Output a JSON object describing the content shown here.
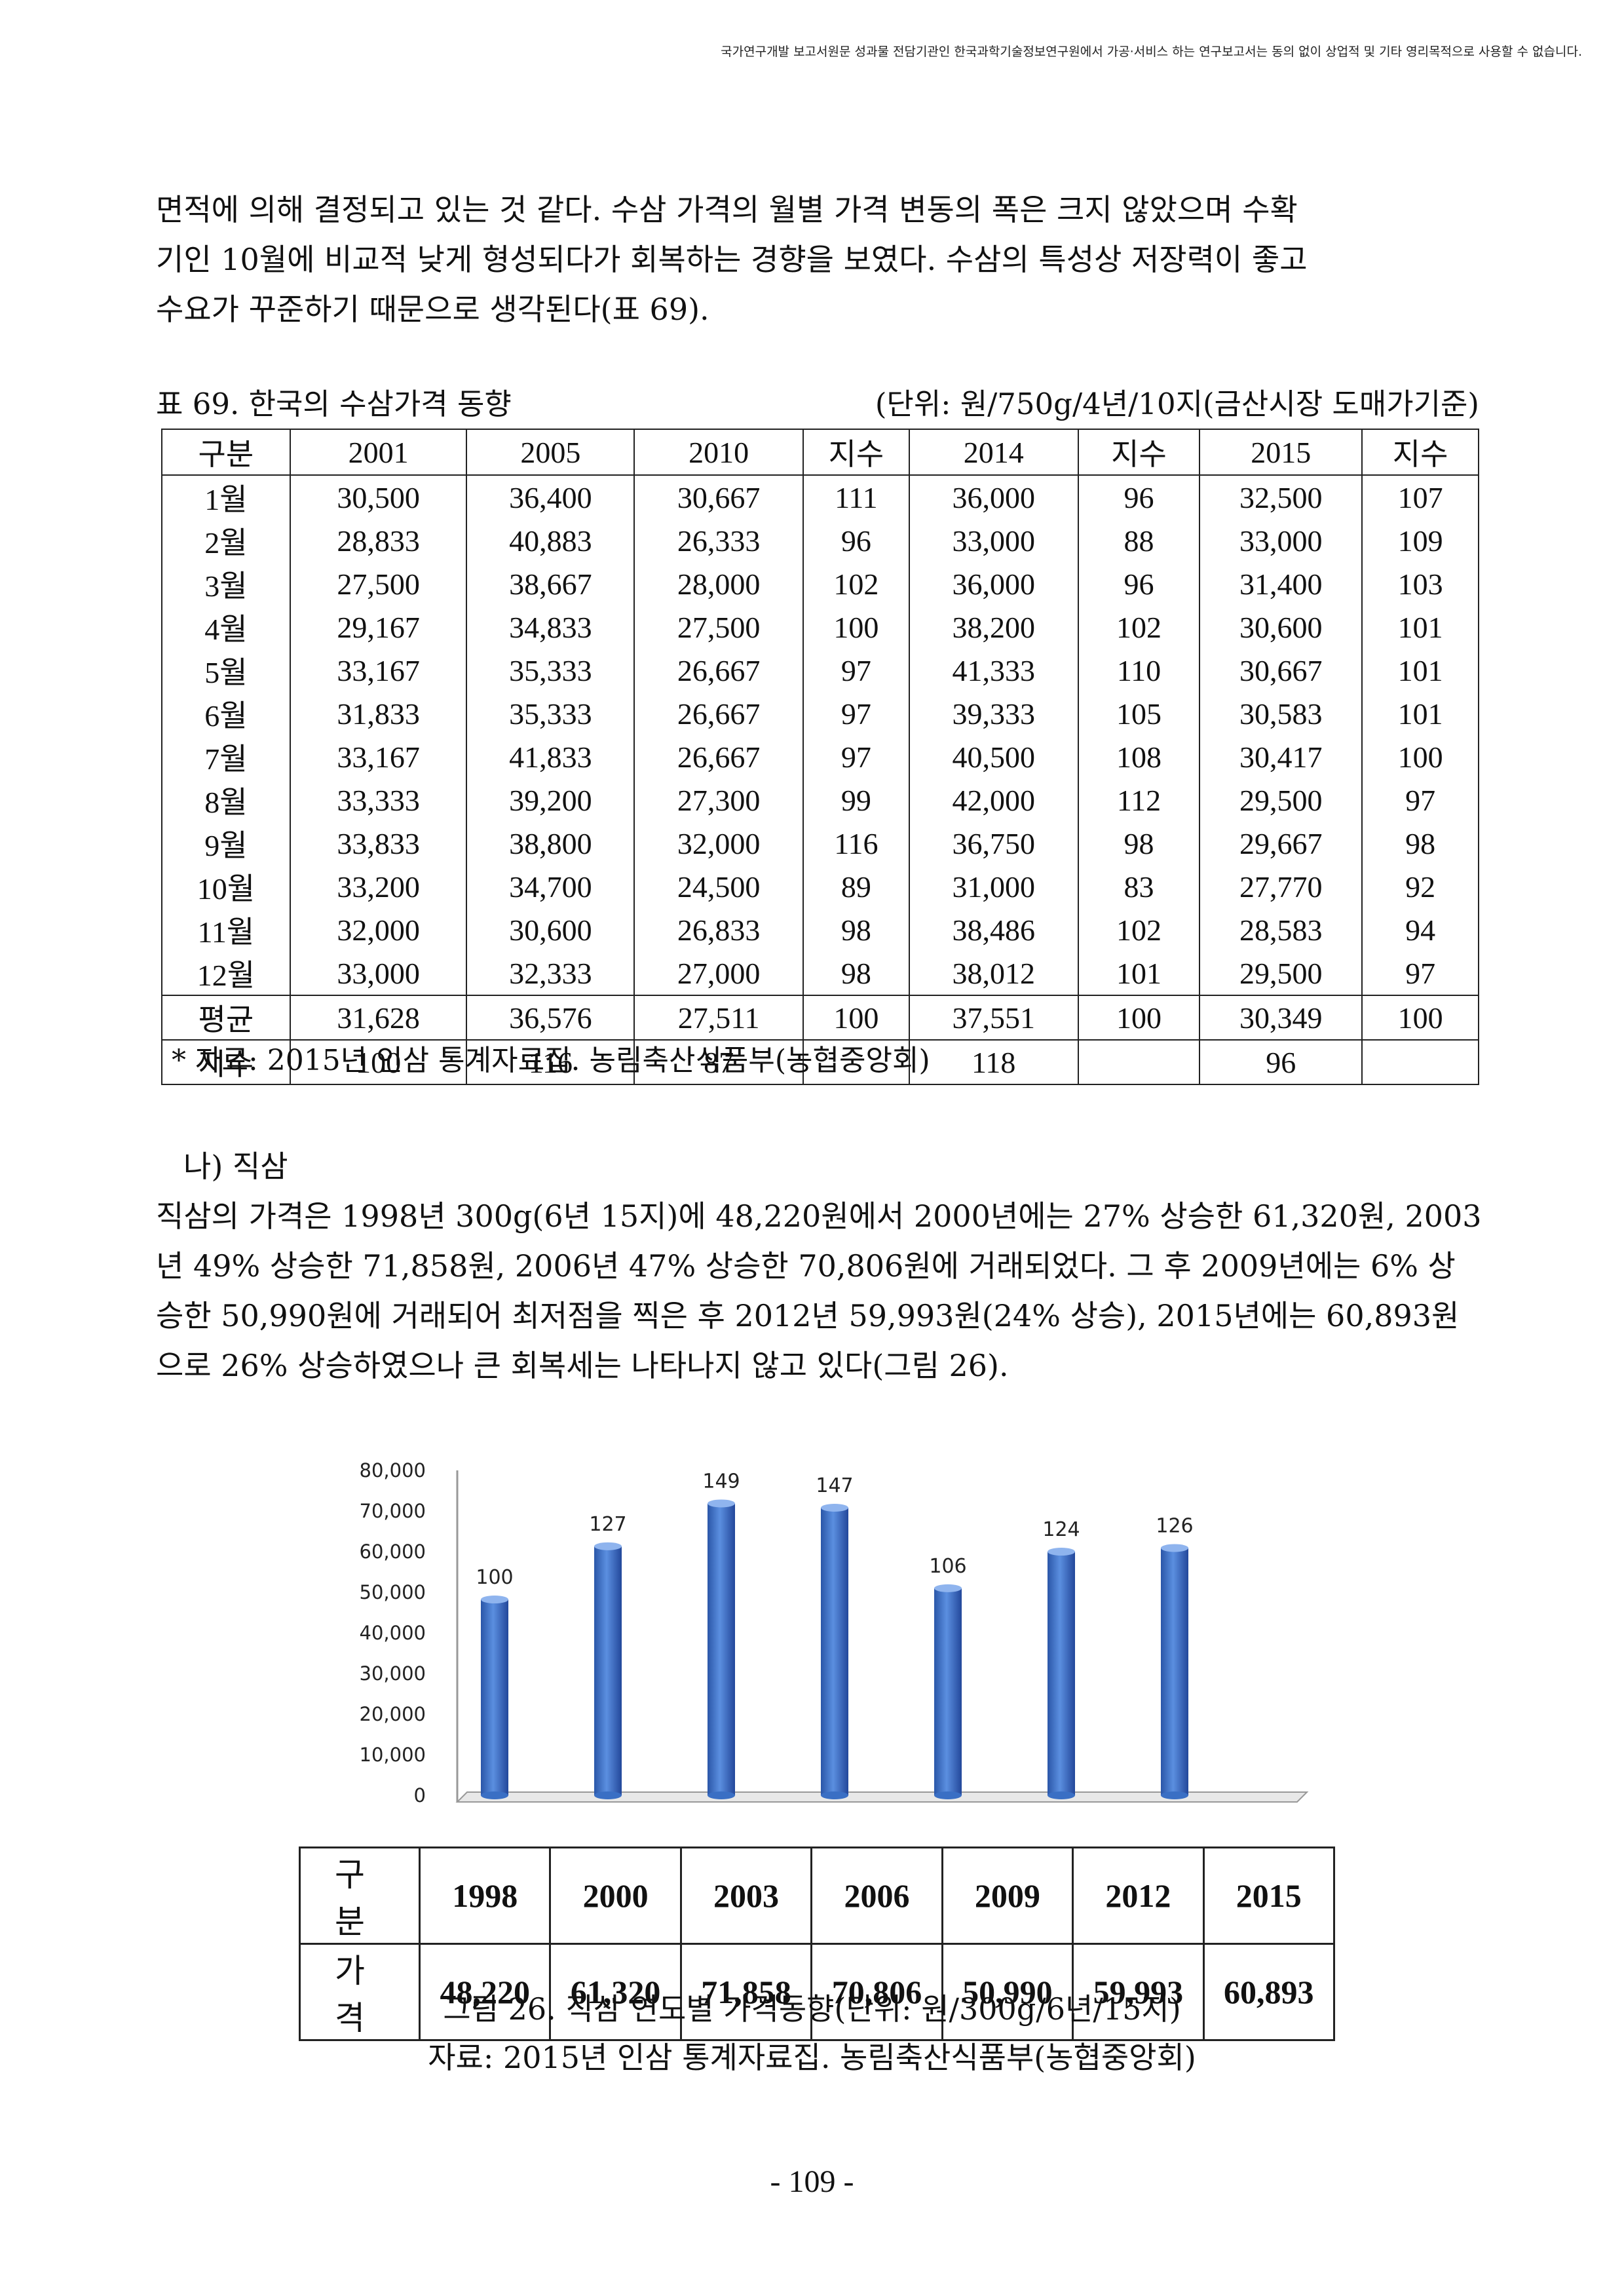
{
  "notice": "국가연구개발 보고서원문 성과물 전담기관인 한국과학기술정보연구원에서 가공·서비스 하는 연구보고서는 동의 없이 상업적 및 기타 영리목적으로 사용할 수 없습니다.",
  "para1": [
    "면적에 의해 결정되고 있는 것 같다. 수삼 가격의 월별 가격 변동의 폭은 크지 않았으며 수확",
    "기인 10월에 비교적 낮게 형성되다가 회복하는 경향을 보였다. 수삼의 특성상 저장력이 좋고",
    "수요가 꾸준하기 때문으로 생각된다(표 69)."
  ],
  "table69": {
    "caption": "표 69. 한국의 수삼가격 동향",
    "unit": "(단위: 원/750g/4년/10지(금산시장 도매가기준)",
    "headers": [
      "구분",
      "2001",
      "2005",
      "2010",
      "지수",
      "2014",
      "지수",
      "2015",
      "지수"
    ],
    "rows": [
      [
        "1월",
        "30,500",
        "36,400",
        "30,667",
        "111",
        "36,000",
        "96",
        "32,500",
        "107"
      ],
      [
        "2월",
        "28,833",
        "40,883",
        "26,333",
        "96",
        "33,000",
        "88",
        "33,000",
        "109"
      ],
      [
        "3월",
        "27,500",
        "38,667",
        "28,000",
        "102",
        "36,000",
        "96",
        "31,400",
        "103"
      ],
      [
        "4월",
        "29,167",
        "34,833",
        "27,500",
        "100",
        "38,200",
        "102",
        "30,600",
        "101"
      ],
      [
        "5월",
        "33,167",
        "35,333",
        "26,667",
        "97",
        "41,333",
        "110",
        "30,667",
        "101"
      ],
      [
        "6월",
        "31,833",
        "35,333",
        "26,667",
        "97",
        "39,333",
        "105",
        "30,583",
        "101"
      ],
      [
        "7월",
        "33,167",
        "41,833",
        "26,667",
        "97",
        "40,500",
        "108",
        "30,417",
        "100"
      ],
      [
        "8월",
        "33,333",
        "39,200",
        "27,300",
        "99",
        "42,000",
        "112",
        "29,500",
        "97"
      ],
      [
        "9월",
        "33,833",
        "38,800",
        "32,000",
        "116",
        "36,750",
        "98",
        "29,667",
        "98"
      ],
      [
        "10월",
        "33,200",
        "34,700",
        "24,500",
        "89",
        "31,000",
        "83",
        "27,770",
        "92"
      ],
      [
        "11월",
        "32,000",
        "30,600",
        "26,833",
        "98",
        "38,486",
        "102",
        "28,583",
        "94"
      ],
      [
        "12월",
        "33,000",
        "32,333",
        "27,000",
        "98",
        "38,012",
        "101",
        "29,500",
        "97"
      ]
    ],
    "average": [
      "평균",
      "31,628",
      "36,576",
      "27,511",
      "100",
      "37,551",
      "100",
      "30,349",
      "100"
    ],
    "index": [
      "지수",
      "100",
      "116",
      "87",
      "",
      "118",
      "",
      "96",
      ""
    ],
    "source": "* 자료: 2015년 인삼 통계자료집. 농림축산식품부(농협중앙회)"
  },
  "subheading": "나) 직삼",
  "para2": [
    "직삼의 가격은 1998년 300g(6년 15지)에 48,220원에서 2000년에는 27% 상승한 61,320원, 2003",
    "년 49% 상승한 71,858원, 2006년 47% 상승한 70,806원에 거래되었다. 그 후 2009년에는 6% 상",
    "승한 50,990원에 거래되어 최저점을 찍은 후 2012년 59,993원(24% 상승), 2015년에는 60,893원",
    "으로 26% 상승하였으나 큰 회복세는 나타나지 않고 있다(그림 26)."
  ],
  "chart_data": {
    "type": "bar",
    "categories": [
      "1998",
      "2000",
      "2003",
      "2006",
      "2009",
      "2012",
      "2015"
    ],
    "values": [
      48220,
      61320,
      71858,
      70806,
      50990,
      59993,
      60893
    ],
    "data_labels": [
      "100",
      "127",
      "149",
      "147",
      "106",
      "124",
      "126"
    ],
    "yticks": [
      "80,000",
      "70,000",
      "60,000",
      "50,000",
      "40,000",
      "30,000",
      "20,000",
      "10,000",
      "0"
    ],
    "ylim": [
      0,
      80000
    ],
    "bar_color": "#3a6fc4",
    "grid": false
  },
  "table26": {
    "row_headers": [
      "구 분",
      "가 격"
    ],
    "years": [
      "1998",
      "2000",
      "2003",
      "2006",
      "2009",
      "2012",
      "2015"
    ],
    "prices": [
      "48,220",
      "61,320",
      "71,858",
      "70,806",
      "50,990",
      "59,993",
      "60,893"
    ]
  },
  "figure_caption": "그림 26. 직삼 연도별 가격동향(단위: 원/300g/6년/15지)",
  "figure_source": "자료: 2015년 인삼 통계자료집. 농림축산식품부(농협중앙회)",
  "page_number": "- 109 -"
}
